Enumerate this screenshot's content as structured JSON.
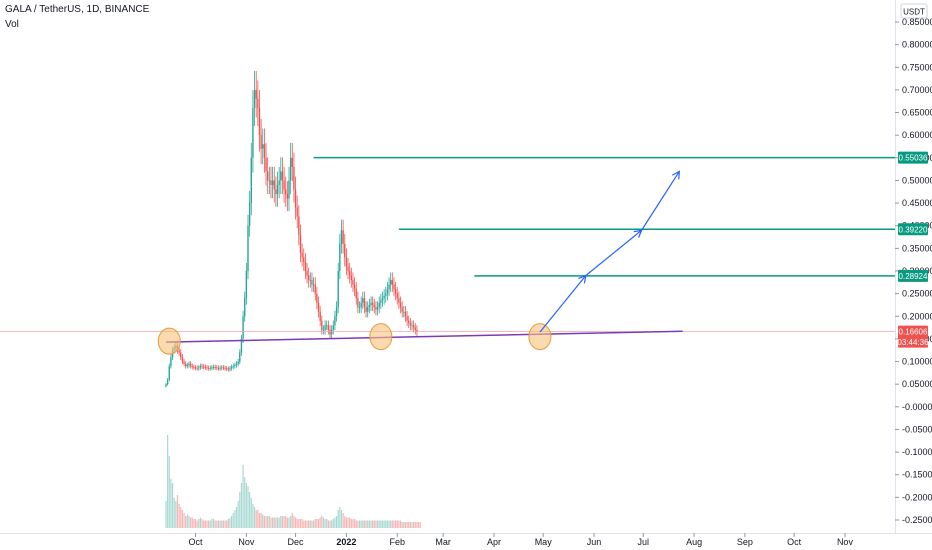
{
  "header": {
    "symbol_line": "GALA / TetherUS, 1D, BINANCE",
    "vol_label": "Vol"
  },
  "price_axis": {
    "currency_label": "USDT",
    "ticks": [
      "0.85000",
      "0.80000",
      "0.75000",
      "0.70000",
      "0.65000",
      "0.60000",
      "0.55000",
      "0.50000",
      "0.45000",
      "0.40000",
      "0.35000",
      "0.30000",
      "0.25000",
      "0.20000",
      "0.15000",
      "0.10000",
      "0.05000",
      "-0.00000",
      "-0.05000",
      "-0.10000",
      "-0.15000",
      "-0.20000",
      "-0.25000"
    ]
  },
  "time_axis": {
    "ticks": [
      "Oct",
      "Nov",
      "Dec",
      "2022",
      "Feb",
      "Mar",
      "Apr",
      "May",
      "Jun",
      "Jul",
      "Aug",
      "Sep",
      "Oct",
      "Nov"
    ]
  },
  "price_tags": {
    "level1": "0.55036",
    "level2": "0.39220",
    "level3": "0.28924",
    "current": "0.16606",
    "countdown": "03:44:36"
  },
  "colors": {
    "up": "#26a69a",
    "down": "#ef5350",
    "level_line": "#089981",
    "support_line": "#7e3ab5",
    "arrow": "#2962ff",
    "circle_fill": "#f8c27a",
    "circle_stroke": "#e89a3c",
    "current_line": "#f5a3a3"
  },
  "chart_data": {
    "type": "candlestick",
    "y_axis_range": [
      -0.27,
      0.86
    ],
    "support_line": {
      "from": [
        "2021-09-13",
        0.143
      ],
      "to": [
        "2022-07-25",
        0.167
      ]
    },
    "resistance_levels": [
      {
        "value": 0.55036,
        "from": "2021-12-12"
      },
      {
        "value": 0.3922,
        "from": "2022-02-02"
      },
      {
        "value": 0.28924,
        "from": "2022-03-20"
      }
    ],
    "current_price": 0.16606,
    "touch_points": [
      {
        "date": "2021-09-15",
        "value": 0.145
      },
      {
        "date": "2022-01-22",
        "value": 0.155
      },
      {
        "date": "2022-04-29",
        "value": 0.155
      }
    ],
    "projection_path": [
      [
        "2022-04-29",
        0.165
      ],
      [
        "2022-05-27",
        0.29
      ],
      [
        "2022-06-30",
        0.39
      ],
      [
        "2022-07-23",
        0.52
      ]
    ],
    "price_series": {
      "start_date": "2021-09-13",
      "interval": "1D",
      "close": [
        0.05,
        0.06,
        0.09,
        0.11,
        0.125,
        0.13,
        0.135,
        0.125,
        0.12,
        0.11,
        0.1,
        0.095,
        0.09,
        0.092,
        0.095,
        0.09,
        0.088,
        0.087,
        0.086,
        0.085,
        0.087,
        0.09,
        0.089,
        0.088,
        0.087,
        0.086,
        0.085,
        0.086,
        0.087,
        0.088,
        0.087,
        0.086,
        0.085,
        0.086,
        0.087,
        0.086,
        0.085,
        0.084,
        0.083,
        0.085,
        0.088,
        0.09,
        0.092,
        0.095,
        0.1,
        0.12,
        0.15,
        0.2,
        0.24,
        0.3,
        0.4,
        0.45,
        0.55,
        0.66,
        0.7,
        0.68,
        0.66,
        0.6,
        0.57,
        0.58,
        0.55,
        0.52,
        0.5,
        0.5,
        0.49,
        0.5,
        0.48,
        0.47,
        0.49,
        0.5,
        0.52,
        0.5,
        0.48,
        0.47,
        0.46,
        0.5,
        0.55,
        0.53,
        0.48,
        0.44,
        0.42,
        0.38,
        0.34,
        0.33,
        0.32,
        0.3,
        0.29,
        0.28,
        0.28,
        0.27,
        0.27,
        0.25,
        0.23,
        0.21,
        0.19,
        0.17,
        0.17,
        0.18,
        0.18,
        0.17,
        0.16,
        0.17,
        0.18,
        0.2,
        0.22,
        0.3,
        0.36,
        0.39,
        0.36,
        0.33,
        0.31,
        0.3,
        0.29,
        0.28,
        0.27,
        0.26,
        0.24,
        0.22,
        0.22,
        0.23,
        0.24,
        0.22,
        0.21,
        0.22,
        0.225,
        0.23,
        0.225,
        0.22,
        0.215,
        0.22,
        0.23,
        0.235,
        0.24,
        0.245,
        0.25,
        0.26,
        0.27,
        0.28,
        0.27,
        0.26,
        0.25,
        0.24,
        0.23,
        0.22,
        0.21,
        0.21,
        0.2,
        0.19,
        0.185,
        0.18,
        0.18,
        0.175,
        0.17,
        0.166
      ]
    },
    "volume_series": {
      "start_date": "2021-09-13",
      "values": [
        0.18,
        0.62,
        0.48,
        0.33,
        0.3,
        0.2,
        0.18,
        0.22,
        0.16,
        0.14,
        0.12,
        0.1,
        0.08,
        0.09,
        0.08,
        0.07,
        0.07,
        0.06,
        0.06,
        0.05,
        0.06,
        0.07,
        0.06,
        0.05,
        0.05,
        0.05,
        0.05,
        0.05,
        0.06,
        0.06,
        0.05,
        0.05,
        0.05,
        0.05,
        0.05,
        0.05,
        0.05,
        0.05,
        0.06,
        0.07,
        0.08,
        0.1,
        0.12,
        0.14,
        0.18,
        0.24,
        0.3,
        0.42,
        0.34,
        0.3,
        0.28,
        0.24,
        0.2,
        0.16,
        0.14,
        0.12,
        0.12,
        0.1,
        0.1,
        0.09,
        0.08,
        0.08,
        0.08,
        0.08,
        0.07,
        0.07,
        0.07,
        0.07,
        0.07,
        0.07,
        0.08,
        0.08,
        0.08,
        0.08,
        0.07,
        0.07,
        0.08,
        0.1,
        0.08,
        0.07,
        0.06,
        0.06,
        0.06,
        0.06,
        0.05,
        0.05,
        0.05,
        0.05,
        0.05,
        0.05,
        0.05,
        0.06,
        0.06,
        0.06,
        0.07,
        0.08,
        0.07,
        0.06,
        0.06,
        0.05,
        0.05,
        0.05,
        0.06,
        0.07,
        0.08,
        0.12,
        0.14,
        0.12,
        0.1,
        0.08,
        0.07,
        0.07,
        0.07,
        0.06,
        0.06,
        0.06,
        0.05,
        0.05,
        0.05,
        0.05,
        0.05,
        0.05,
        0.05,
        0.05,
        0.05,
        0.05,
        0.05,
        0.05,
        0.05,
        0.05,
        0.05,
        0.05,
        0.05,
        0.05,
        0.05,
        0.05,
        0.05,
        0.05,
        0.05,
        0.05,
        0.05,
        0.05,
        0.05,
        0.05,
        0.04,
        0.04,
        0.04,
        0.04,
        0.04,
        0.04,
        0.04,
        0.04,
        0.04,
        0.04,
        0.04,
        0.04
      ]
    }
  }
}
